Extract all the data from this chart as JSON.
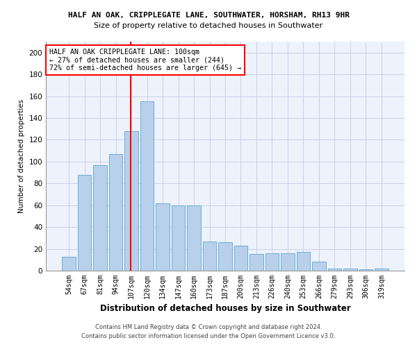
{
  "title1": "HALF AN OAK, CRIPPLEGATE LANE, SOUTHWATER, HORSHAM, RH13 9HR",
  "title2": "Size of property relative to detached houses in Southwater",
  "xlabel": "Distribution of detached houses by size in Southwater",
  "ylabel": "Number of detached properties",
  "categories": [
    "54sqm",
    "67sqm",
    "81sqm",
    "94sqm",
    "107sqm",
    "120sqm",
    "134sqm",
    "147sqm",
    "160sqm",
    "173sqm",
    "187sqm",
    "200sqm",
    "213sqm",
    "226sqm",
    "240sqm",
    "253sqm",
    "266sqm",
    "279sqm",
    "293sqm",
    "306sqm",
    "319sqm"
  ],
  "values": [
    13,
    88,
    97,
    107,
    128,
    155,
    62,
    60,
    60,
    27,
    26,
    23,
    15,
    16,
    16,
    17,
    8,
    2,
    2,
    1,
    2
  ],
  "bar_color": "#b8d0ea",
  "bar_edge_color": "#6aaed6",
  "vline_color": "red",
  "annotation_text": "HALF AN OAK CRIPPLEGATE LANE: 100sqm\n← 27% of detached houses are smaller (244)\n72% of semi-detached houses are larger (645) →",
  "annotation_box_color": "white",
  "annotation_box_edge": "red",
  "ylim": [
    0,
    210
  ],
  "yticks": [
    0,
    20,
    40,
    60,
    80,
    100,
    120,
    140,
    160,
    180,
    200
  ],
  "footnote1": "Contains HM Land Registry data © Crown copyright and database right 2024.",
  "footnote2": "Contains public sector information licensed under the Open Government Licence v3.0.",
  "bg_color": "#eef2fb",
  "grid_color": "#c8d0e8"
}
